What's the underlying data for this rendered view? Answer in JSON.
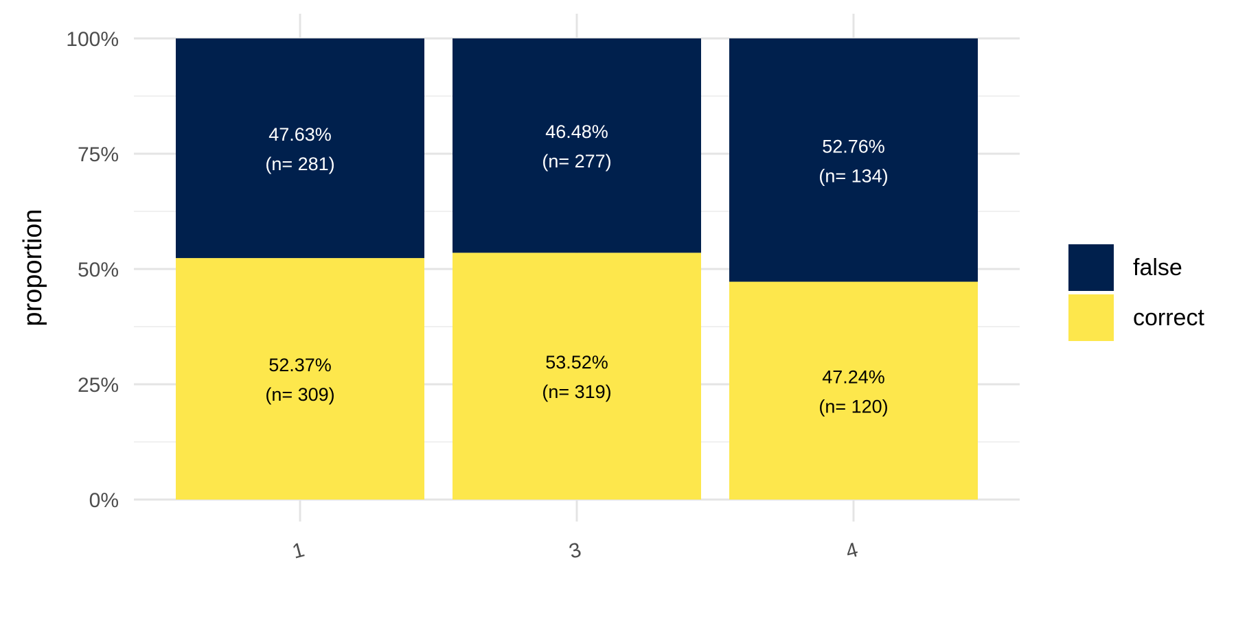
{
  "chart_data": {
    "type": "bar",
    "stacked": true,
    "categories": [
      "1",
      "3",
      "4"
    ],
    "xlabel": "",
    "ylabel": "proportion",
    "ylim": [
      0,
      1
    ],
    "y_ticks": [
      {
        "value": 0,
        "label": "0%"
      },
      {
        "value": 0.25,
        "label": "25%"
      },
      {
        "value": 0.5,
        "label": "50%"
      },
      {
        "value": 0.75,
        "label": "75%"
      },
      {
        "value": 1.0,
        "label": "100%"
      }
    ],
    "grid": true,
    "legend_position": "right",
    "series": [
      {
        "name": "correct",
        "color": "#FDE74C",
        "label_color": "#000000",
        "values": [
          0.5237,
          0.5352,
          0.4724
        ],
        "percent_labels": [
          "52.37%",
          "53.52%",
          "47.24%"
        ],
        "count_labels": [
          "(n= 309)",
          "(n= 319)",
          "(n= 120)"
        ]
      },
      {
        "name": "false",
        "color": "#00204D",
        "label_color": "#ffffff",
        "values": [
          0.4763,
          0.4648,
          0.5276
        ],
        "percent_labels": [
          "47.63%",
          "46.48%",
          "52.76%"
        ],
        "count_labels": [
          "(n= 281)",
          "(n= 277)",
          "(n= 134)"
        ]
      }
    ],
    "legend": [
      {
        "name": "false",
        "color": "#00204D"
      },
      {
        "name": "correct",
        "color": "#FDE74C"
      }
    ]
  }
}
